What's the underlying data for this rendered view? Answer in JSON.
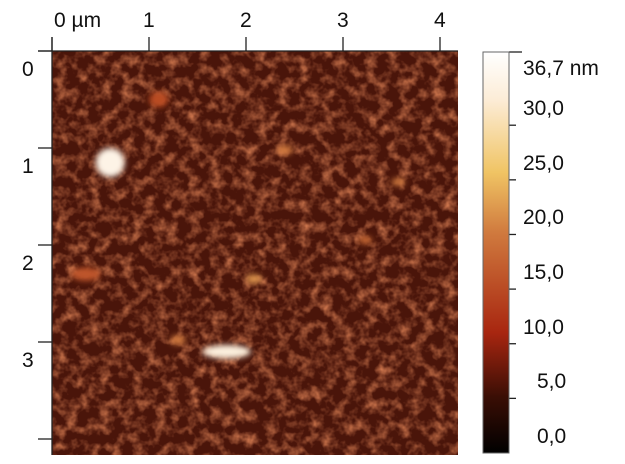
{
  "chart_data": {
    "type": "heatmap",
    "description_kind": "AFM height map",
    "x_axis": {
      "ticks": [
        "0 µm",
        "1",
        "2",
        "3",
        "4"
      ],
      "range": [
        0,
        4.2
      ],
      "unit": "µm"
    },
    "y_axis": {
      "ticks": [
        "0",
        "1",
        "2",
        "3"
      ],
      "range": [
        0,
        4.2
      ],
      "unit": "µm"
    },
    "colorbar": {
      "max_label": "36,7 nm",
      "ticks": [
        "30,0",
        "25,0",
        "20,0",
        "15,0",
        "10,0",
        "5,0",
        "0,0"
      ],
      "range": [
        0,
        36.7
      ],
      "unit": "nm",
      "colors": [
        "#000000",
        "#3a0e05",
        "#a8261000",
        "#d0783c",
        "#f0c464",
        "#fff8ee",
        "#ffffff"
      ]
    },
    "background_level_nm": 8,
    "features": [
      {
        "x": 0.6,
        "y": 1.15,
        "height": 34,
        "rx": 0.15,
        "ry": 0.15
      },
      {
        "x": 1.8,
        "y": 3.1,
        "height": 33,
        "rx": 0.25,
        "ry": 0.07
      },
      {
        "x": 2.08,
        "y": 2.35,
        "height": 22,
        "rx": 0.08,
        "ry": 0.05
      },
      {
        "x": 2.4,
        "y": 1.02,
        "height": 20,
        "rx": 0.08,
        "ry": 0.05
      },
      {
        "x": 3.57,
        "y": 1.35,
        "height": 20,
        "rx": 0.07,
        "ry": 0.04
      },
      {
        "x": 3.23,
        "y": 1.95,
        "height": 18,
        "rx": 0.07,
        "ry": 0.04
      },
      {
        "x": 1.3,
        "y": 2.98,
        "height": 20,
        "rx": 0.08,
        "ry": 0.05
      },
      {
        "x": 0.35,
        "y": 2.3,
        "height": 16,
        "rx": 0.15,
        "ry": 0.07
      },
      {
        "x": 1.1,
        "y": 0.5,
        "height": 15,
        "rx": 0.1,
        "ry": 0.08
      }
    ]
  }
}
